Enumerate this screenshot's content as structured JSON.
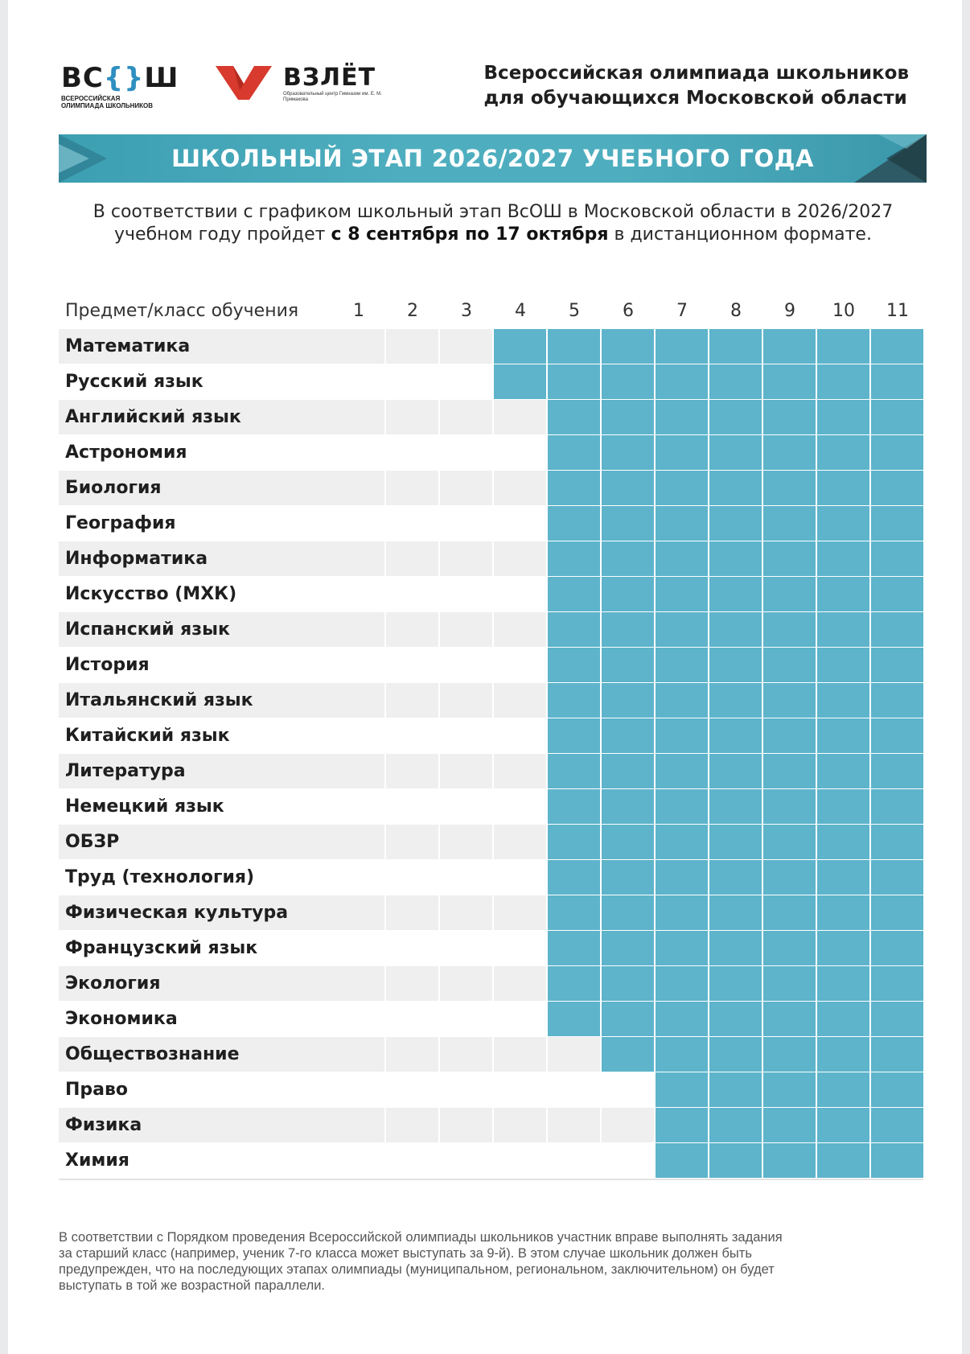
{
  "header": {
    "vsosh_logo": {
      "mark_left": "ВС",
      "mark_brace_open": "{",
      "mark_brace_close": "}",
      "mark_right": "Ш",
      "subtitle": "ВСЕРОССИЙСКАЯ ОЛИМПИАДА ШКОЛЬНИКОВ"
    },
    "vzlet_logo": {
      "word": "ВЗЛЁТ",
      "subtitle": "Образовательный центр Гимназии им. Е. М. Примакова"
    },
    "org_title_line1": "Всероссийская олимпиада школьников",
    "org_title_line2": "для обучающихся Московской области"
  },
  "banner": {
    "title": "ШКОЛЬНЫЙ ЭТАП 2026/2027 УЧЕБНОГО ГОДА"
  },
  "intro": {
    "line1": "В соответствии с графиком школьный этап ВсОШ в Московской области в 2026/2027",
    "line2_before": "учебном году пройдет ",
    "line2_bold": "с 8 сентября по 17 октября",
    "line2_after": " в дистанционном формате."
  },
  "table": {
    "subject_header": "Предмет/класс обучения",
    "grades": [
      "1",
      "2",
      "3",
      "4",
      "5",
      "6",
      "7",
      "8",
      "9",
      "10",
      "11"
    ],
    "rows": [
      {
        "subject": "Математика",
        "from_grade": 4
      },
      {
        "subject": "Русский язык",
        "from_grade": 4
      },
      {
        "subject": "Английский язык",
        "from_grade": 5
      },
      {
        "subject": "Астрономия",
        "from_grade": 5
      },
      {
        "subject": "Биология",
        "from_grade": 5
      },
      {
        "subject": "География",
        "from_grade": 5
      },
      {
        "subject": "Информатика",
        "from_grade": 5
      },
      {
        "subject": "Искусство (МХК)",
        "from_grade": 5
      },
      {
        "subject": "Испанский язык",
        "from_grade": 5
      },
      {
        "subject": "История",
        "from_grade": 5
      },
      {
        "subject": "Итальянский язык",
        "from_grade": 5
      },
      {
        "subject": "Китайский язык",
        "from_grade": 5
      },
      {
        "subject": "Литература",
        "from_grade": 5
      },
      {
        "subject": "Немецкий язык",
        "from_grade": 5
      },
      {
        "subject": "ОБЗР",
        "from_grade": 5
      },
      {
        "subject": "Труд (технология)",
        "from_grade": 5
      },
      {
        "subject": "Физическая культура",
        "from_grade": 5
      },
      {
        "subject": "Французский язык",
        "from_grade": 5
      },
      {
        "subject": "Экология",
        "from_grade": 5
      },
      {
        "subject": "Экономика",
        "from_grade": 5
      },
      {
        "subject": "Обществознание",
        "from_grade": 6
      },
      {
        "subject": "Право",
        "from_grade": 7
      },
      {
        "subject": "Физика",
        "from_grade": 7
      },
      {
        "subject": "Химия",
        "from_grade": 7
      }
    ]
  },
  "footnote": {
    "line1": "В соответствии с Порядком проведения Всероссийской олимпиады школьников участник вправе выполнять задания",
    "line2": "за старший класс (например, ученик 7-го класса может выступать за 9-й). В этом случае школьник должен быть",
    "line3": "предупрежден, что на последующих этапах олимпиады (муниципальном, региональном, заключительном) он будет",
    "line4": "выступать в той же возрастной параллели."
  },
  "colors": {
    "accent": "#5db4cb",
    "banner": "#4eaebf",
    "logo_red": "#d83a2e",
    "row_alt": "#efefef"
  }
}
